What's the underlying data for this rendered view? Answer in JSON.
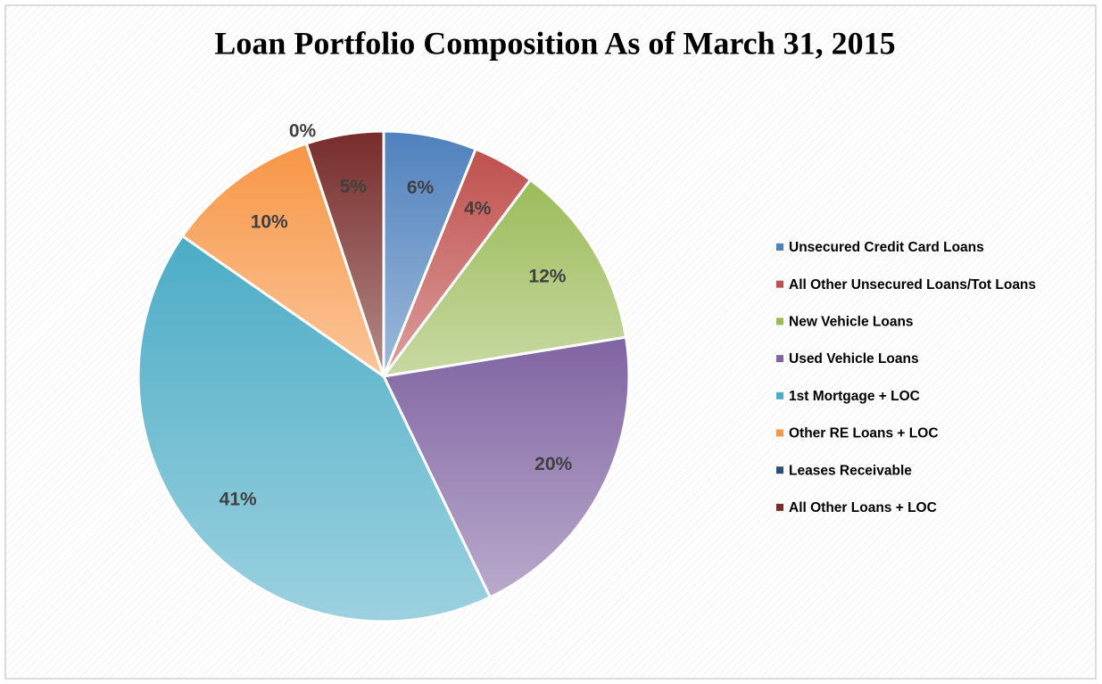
{
  "chart_data": {
    "type": "pie",
    "title": "Loan Portfolio Composition As of March 31, 2015",
    "categories": [
      "Unsecured Credit Card Loans",
      "All Other Unsecured Loans/Tot Loans",
      "New Vehicle Loans",
      "Used Vehicle Loans",
      "1st Mortgage + LOC",
      "Other RE Loans + LOC",
      "Leases Receivable",
      "All Other Loans + LOC"
    ],
    "values": [
      6,
      4,
      12,
      20,
      41,
      10,
      0,
      5
    ],
    "value_labels": [
      "6%",
      "4%",
      "12%",
      "20%",
      "41%",
      "10%",
      "0%",
      "5%"
    ],
    "colors": [
      "#4f81bd",
      "#c0504d",
      "#9bbb59",
      "#8064a2",
      "#4bacc6",
      "#f79646",
      "#2c4d75",
      "#772c2a"
    ],
    "legend": "right"
  }
}
